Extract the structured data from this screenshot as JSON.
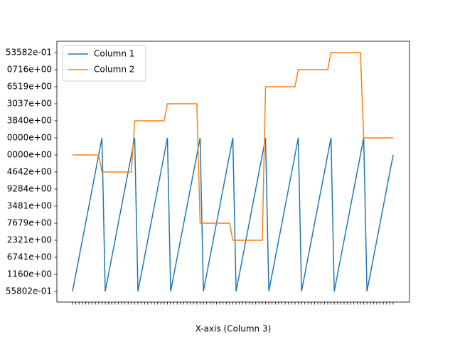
{
  "chart_data": {
    "type": "line",
    "xlabel": "X-axis (Column 3)",
    "categories": [
      null,
      null,
      null,
      null,
      null,
      null,
      null,
      null,
      null,
      null,
      null,
      null,
      null,
      null,
      null,
      null,
      null,
      null,
      null,
      null,
      null,
      null,
      null,
      null,
      null,
      null,
      null,
      null,
      null,
      null,
      null,
      null,
      null,
      null,
      null,
      null,
      null,
      null,
      null,
      null,
      null,
      null,
      null,
      null,
      null,
      null,
      null,
      null,
      null,
      null,
      null,
      null,
      null,
      null,
      null,
      null,
      null,
      null,
      null,
      null,
      null,
      null,
      null,
      null,
      null,
      null,
      null,
      null,
      null,
      null,
      null,
      null,
      null,
      null,
      null,
      null,
      null,
      null,
      null,
      null,
      null,
      null,
      null,
      null,
      null,
      null,
      null,
      null,
      null,
      null,
      null,
      null,
      null,
      null,
      null,
      null,
      null,
      null,
      null
    ],
    "ylim": [
      -0.625,
      14.667
    ],
    "yticks": [
      {
        "value": 0,
        "label": "55802e-01"
      },
      {
        "value": 1,
        "label": "1160e+00"
      },
      {
        "value": 2,
        "label": "6741e+00"
      },
      {
        "value": 3,
        "label": "2321e+00"
      },
      {
        "value": 4,
        "label": "7679e+00"
      },
      {
        "value": 5,
        "label": "3481e+00"
      },
      {
        "value": 6,
        "label": "9284e+00"
      },
      {
        "value": 7,
        "label": "4642e+00"
      },
      {
        "value": 8,
        "label": "0000e+00"
      },
      {
        "value": 9,
        "label": "0000e+00"
      },
      {
        "value": 10,
        "label": "3840e+00"
      },
      {
        "value": 11,
        "label": "3037e+00"
      },
      {
        "value": 12,
        "label": "6519e+00"
      },
      {
        "value": 13,
        "label": "0716e+00"
      },
      {
        "value": 14,
        "label": "53582e-01"
      }
    ],
    "legend": "upper left",
    "series": [
      {
        "name": "Column 1",
        "color": "#1f77b4",
        "values": [
          0,
          1,
          2,
          3,
          4,
          5,
          6,
          7,
          8,
          9,
          0,
          1,
          2,
          3,
          4,
          5,
          6,
          7,
          8,
          9,
          0,
          1,
          2,
          3,
          4,
          5,
          6,
          7,
          8,
          9,
          0,
          1,
          2,
          3,
          4,
          5,
          6,
          7,
          8,
          9,
          0,
          1,
          2,
          3,
          4,
          5,
          6,
          7,
          8,
          9,
          0,
          1,
          2,
          3,
          4,
          5,
          6,
          7,
          8,
          9,
          0,
          1,
          2,
          3,
          4,
          5,
          6,
          7,
          8,
          9,
          0,
          1,
          2,
          3,
          4,
          5,
          6,
          7,
          8,
          9,
          0,
          1,
          2,
          3,
          4,
          5,
          6,
          7,
          8,
          9,
          0,
          1,
          2,
          3,
          4,
          5,
          6,
          7,
          8
        ]
      },
      {
        "name": "Column 2",
        "color": "#ff7f0e",
        "values": [
          8,
          8,
          8,
          8,
          8,
          8,
          8,
          8,
          8,
          7,
          7,
          7,
          7,
          7,
          7,
          7,
          7,
          7,
          7,
          10,
          10,
          10,
          10,
          10,
          10,
          10,
          10,
          10,
          10,
          11,
          11,
          11,
          11,
          11,
          11,
          11,
          11,
          11,
          11,
          4,
          4,
          4,
          4,
          4,
          4,
          4,
          4,
          4,
          4,
          3,
          3,
          3,
          3,
          3,
          3,
          3,
          3,
          3,
          3,
          12,
          12,
          12,
          12,
          12,
          12,
          12,
          12,
          12,
          12,
          13,
          13,
          13,
          13,
          13,
          13,
          13,
          13,
          13,
          13,
          14,
          14,
          14,
          14,
          14,
          14,
          14,
          14,
          14,
          14,
          9,
          9,
          9,
          9,
          9,
          9,
          9,
          9,
          9,
          9
        ]
      }
    ]
  }
}
